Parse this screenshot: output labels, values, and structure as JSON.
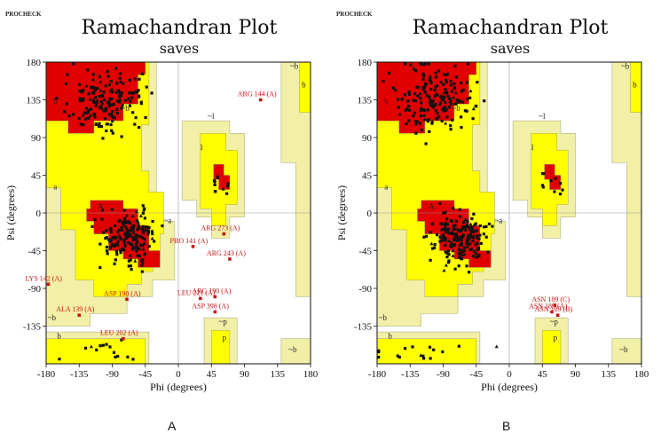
{
  "chart_data": [
    {
      "type": "scatter",
      "panel": "A",
      "header": "PROCHECK",
      "title": "Ramachandran Plot",
      "subtitle": "saves",
      "xlabel": "Phi (degrees)",
      "ylabel": "Psi (degrees)",
      "xlim": [
        -180,
        180
      ],
      "ylim": [
        -180,
        180
      ],
      "xticks": [
        -180,
        -135,
        -90,
        -45,
        0,
        45,
        90,
        135,
        180
      ],
      "yticks": [
        180,
        135,
        90,
        45,
        0,
        -45,
        -90,
        -135
      ],
      "region_labels": [
        {
          "text": "b",
          "x": -170,
          "y": 130
        },
        {
          "text": "~b",
          "x": -78,
          "y": 122
        },
        {
          "text": "~l",
          "x": 40,
          "y": 112
        },
        {
          "text": "l",
          "x": 30,
          "y": 75
        },
        {
          "text": "a",
          "x": -170,
          "y": 28
        },
        {
          "text": "A",
          "x": -110,
          "y": 5
        },
        {
          "text": "~a",
          "x": -20,
          "y": -12
        },
        {
          "text": "~b",
          "x": -178,
          "y": -128
        },
        {
          "text": "b",
          "x": -165,
          "y": -150
        },
        {
          "text": "~p",
          "x": 55,
          "y": -133
        },
        {
          "text": "p",
          "x": 60,
          "y": -152
        },
        {
          "text": "~b",
          "x": 152,
          "y": 172
        },
        {
          "text": "b",
          "x": 168,
          "y": 150
        },
        {
          "text": "~b",
          "x": 150,
          "y": -166
        }
      ],
      "outliers": [
        {
          "label": "ARG 144 (A)",
          "x": 112,
          "y": 135
        },
        {
          "label": "PRO 141 (A)",
          "x": 20,
          "y": -40
        },
        {
          "label": "ARG 273 (A)",
          "x": 62,
          "y": -25
        },
        {
          "label": "ARG 243 (A)",
          "x": 70,
          "y": -55
        },
        {
          "label": "LYS 142 (A)",
          "x": -177,
          "y": -85
        },
        {
          "label": "ASP 190 (A)",
          "x": -70,
          "y": -103
        },
        {
          "label": "LEU 221 (A)",
          "x": 30,
          "y": -102
        },
        {
          "label": "ARG 190 (A)",
          "x": 50,
          "y": -100
        },
        {
          "label": "ASP 398 (A)",
          "x": 50,
          "y": -118
        },
        {
          "label": "ALA 139 (A)",
          "x": -135,
          "y": -122
        },
        {
          "label": "LEU 202 (A)",
          "x": -75,
          "y": -150
        }
      ],
      "point_clusters": [
        {
          "name": "beta",
          "center": [
            -100,
            135
          ],
          "spread": [
            35,
            25
          ],
          "count": 160
        },
        {
          "name": "alpha",
          "center": [
            -70,
            -30
          ],
          "spread": [
            22,
            20
          ],
          "count": 170
        },
        {
          "name": "left-handed",
          "center": [
            58,
            35
          ],
          "spread": [
            10,
            10
          ],
          "count": 12
        },
        {
          "name": "lower-beta",
          "center": [
            -100,
            -165
          ],
          "spread": [
            40,
            10
          ],
          "count": 14
        }
      ]
    },
    {
      "type": "scatter",
      "panel": "B",
      "header": "PROCHECK",
      "title": "Ramachandran Plot",
      "subtitle": "saves",
      "xlabel": "Phi (degrees)",
      "ylabel": "Psi (degrees)",
      "xlim": [
        -180,
        180
      ],
      "ylim": [
        -180,
        180
      ],
      "xticks": [
        -180,
        -135,
        -90,
        -45,
        0,
        45,
        90,
        135,
        180
      ],
      "yticks": [
        180,
        135,
        90,
        45,
        0,
        -45,
        -90,
        -135
      ],
      "region_labels": [
        {
          "text": "b",
          "x": -170,
          "y": 130
        },
        {
          "text": "~b",
          "x": -78,
          "y": 122
        },
        {
          "text": "~l",
          "x": 40,
          "y": 112
        },
        {
          "text": "l",
          "x": 30,
          "y": 75
        },
        {
          "text": "a",
          "x": -170,
          "y": 28
        },
        {
          "text": "A",
          "x": -110,
          "y": 5
        },
        {
          "text": "~a",
          "x": -20,
          "y": -12
        },
        {
          "text": "~b",
          "x": -178,
          "y": -128
        },
        {
          "text": "b",
          "x": -165,
          "y": -150
        },
        {
          "text": "~p",
          "x": 55,
          "y": -133
        },
        {
          "text": "p",
          "x": 60,
          "y": -152
        },
        {
          "text": "~b",
          "x": 152,
          "y": 172
        },
        {
          "text": "b",
          "x": 168,
          "y": 150
        },
        {
          "text": "~b",
          "x": 150,
          "y": -166
        }
      ],
      "outliers": [
        {
          "label": "ASN 189 (C)",
          "x": 62,
          "y": -110
        },
        {
          "label": "ASN 189 (A)",
          "x": 58,
          "y": -118
        },
        {
          "label": "ASN 189 (B)",
          "x": 66,
          "y": -122
        }
      ],
      "point_clusters": [
        {
          "name": "beta",
          "center": [
            -100,
            135
          ],
          "spread": [
            35,
            25
          ],
          "count": 170
        },
        {
          "name": "alpha",
          "center": [
            -70,
            -30
          ],
          "spread": [
            22,
            20
          ],
          "count": 180
        },
        {
          "name": "left-handed",
          "center": [
            58,
            35
          ],
          "spread": [
            10,
            10
          ],
          "count": 10
        },
        {
          "name": "lower-beta",
          "center": [
            -100,
            -165
          ],
          "spread": [
            40,
            10
          ],
          "count": 16
        }
      ]
    }
  ],
  "captions": {
    "a": "A",
    "b": "B"
  },
  "colors": {
    "core": "#e00000",
    "allowed": "#ffff00",
    "generous": "#f2f0a6",
    "disallowed": "#ffffff",
    "points": "#111111",
    "outlier": "#c81414"
  }
}
